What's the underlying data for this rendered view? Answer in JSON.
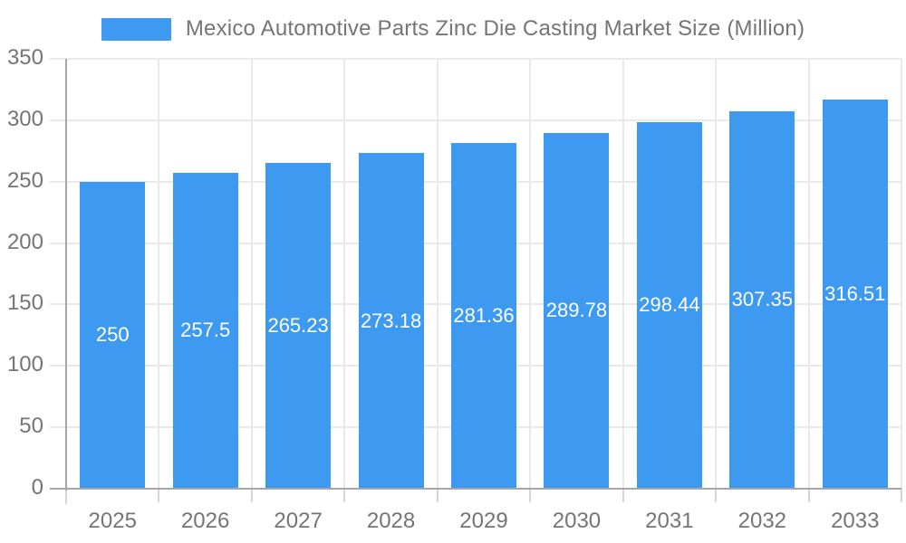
{
  "legend": {
    "label": "Mexico Automotive Parts Zinc Die Casting Market Size (Million)"
  },
  "chart_data": {
    "type": "bar",
    "title": "Mexico Automotive Parts Zinc Die Casting Market Size (Million)",
    "categories": [
      "2025",
      "2026",
      "2027",
      "2028",
      "2029",
      "2030",
      "2031",
      "2032",
      "2033"
    ],
    "values": [
      250,
      257.5,
      265.23,
      273.18,
      281.36,
      289.78,
      298.44,
      307.35,
      316.51
    ],
    "value_labels": [
      "250",
      "257.5",
      "265.23",
      "273.18",
      "281.36",
      "289.78",
      "298.44",
      "307.35",
      "316.51"
    ],
    "xlabel": "",
    "ylabel": "",
    "ylim": [
      0,
      350
    ],
    "ytick_step": 50,
    "ytick_labels": [
      "0",
      "50",
      "100",
      "150",
      "200",
      "250",
      "300",
      "350"
    ],
    "grid": true,
    "legend_position": "top",
    "series_name": "Mexico Automotive Parts Zinc Die Casting Market Size (Million)"
  },
  "colors": {
    "bar": "#3d9af0",
    "bar_value_text": "#ffffff",
    "axis_line": "#a6a6a6",
    "gridline": "#e9e9e9",
    "x_tick": "#d6d6d6",
    "axis_text": "#757575",
    "background": "#ffffff"
  }
}
